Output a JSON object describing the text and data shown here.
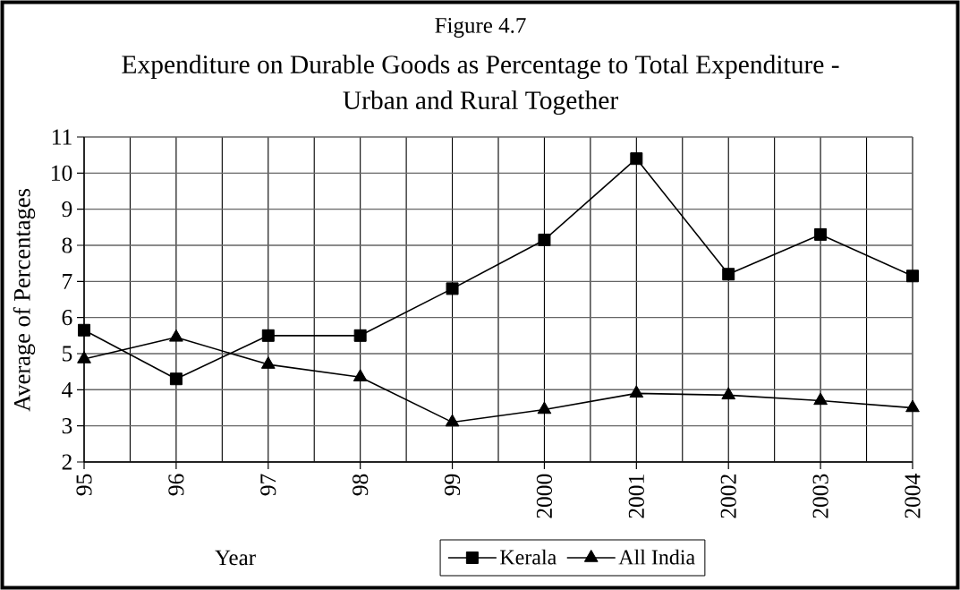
{
  "chart_data": {
    "type": "line",
    "title": "Expenditure on Durable Goods as Percentage to Total Expenditure - Urban and Rural Together",
    "annotations": [
      "Figure 4.7"
    ],
    "xlabel": "Year",
    "ylabel": "Average of Percentages",
    "categories": [
      "95",
      "96",
      "97",
      "98",
      "99",
      "2000",
      "2001",
      "2002",
      "2003",
      "2004"
    ],
    "series": [
      {
        "name": "Kerala",
        "color": "#000000",
        "marker": "square",
        "values": [
          5.65,
          4.3,
          5.5,
          5.5,
          6.8,
          8.15,
          10.4,
          7.2,
          8.3,
          7.15
        ]
      },
      {
        "name": "All India",
        "color": "#000000",
        "marker": "triangle",
        "values": [
          4.85,
          5.45,
          4.7,
          4.35,
          3.1,
          3.45,
          3.9,
          3.85,
          3.7,
          3.5
        ]
      }
    ],
    "ylim": [
      2,
      11
    ],
    "yticks": [
      2,
      3,
      4,
      5,
      6,
      7,
      8,
      9,
      10,
      11
    ],
    "grid": true,
    "legend": "bottom",
    "line_style": "solid"
  }
}
